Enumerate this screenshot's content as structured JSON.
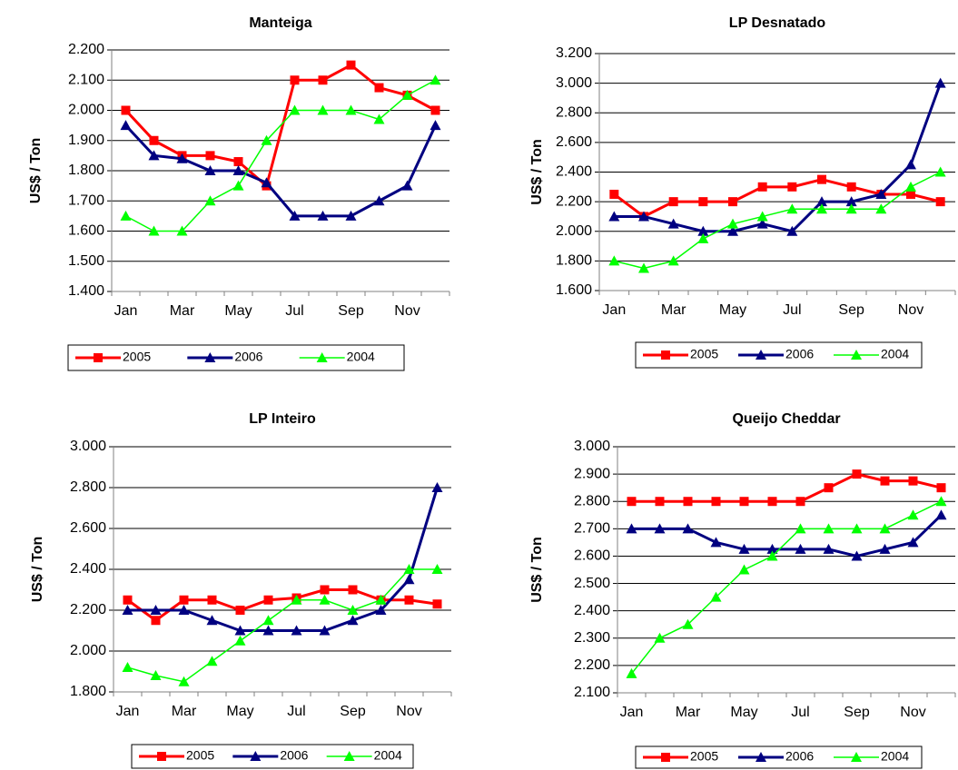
{
  "chart_data": [
    {
      "type": "line",
      "title": "Manteiga",
      "y_label": "US$ / Ton",
      "categories": [
        "Jan",
        null,
        "Mar",
        null,
        "May",
        null,
        "Jul",
        null,
        "Sep",
        null,
        "Nov",
        null
      ],
      "ylim": [
        1400,
        2200
      ],
      "yticks": [
        {
          "value": 1400,
          "label": "1.400"
        },
        {
          "value": 1500,
          "label": "1.500"
        },
        {
          "value": 1600,
          "label": "1.600"
        },
        {
          "value": 1700,
          "label": "1.700"
        },
        {
          "value": 1800,
          "label": "1.800"
        },
        {
          "value": 1900,
          "label": "1.900"
        },
        {
          "value": 2000,
          "label": "2.000"
        },
        {
          "value": 2100,
          "label": "2.100"
        },
        {
          "value": 2200,
          "label": "2.200"
        }
      ],
      "grid": true,
      "legend": "bottom",
      "series": [
        {
          "name": "2005",
          "color": "#ff0000",
          "values": [
            2000,
            1900,
            1850,
            1850,
            1830,
            1750,
            2100,
            2100,
            2150,
            2075,
            2050,
            2000
          ]
        },
        {
          "name": "2006",
          "color": "#000080",
          "values": [
            1950,
            1850,
            1840,
            1800,
            1800,
            1760,
            1650,
            1650,
            1650,
            1700,
            1750,
            1950
          ]
        },
        {
          "name": "2004",
          "color": "#00ff00",
          "values": [
            1650,
            1600,
            1600,
            1700,
            1750,
            1900,
            2000,
            2000,
            2000,
            1970,
            2050,
            2100
          ]
        }
      ]
    },
    {
      "type": "line",
      "title": "LP Desnatado",
      "y_label": "US$ / Ton",
      "categories": [
        "Jan",
        null,
        "Mar",
        null,
        "May",
        null,
        "Jul",
        null,
        "Sep",
        null,
        "Nov",
        null
      ],
      "ylim": [
        1600,
        3200
      ],
      "yticks": [
        {
          "value": 1600,
          "label": "1.600"
        },
        {
          "value": 1800,
          "label": "1.800"
        },
        {
          "value": 2000,
          "label": "2.000"
        },
        {
          "value": 2200,
          "label": "2.200"
        },
        {
          "value": 2400,
          "label": "2.400"
        },
        {
          "value": 2600,
          "label": "2.600"
        },
        {
          "value": 2800,
          "label": "2.800"
        },
        {
          "value": 3000,
          "label": "3.000"
        },
        {
          "value": 3200,
          "label": "3.200"
        }
      ],
      "grid": true,
      "legend": "bottom",
      "series": [
        {
          "name": "2005",
          "color": "#ff0000",
          "values": [
            2250,
            2100,
            2200,
            2200,
            2200,
            2300,
            2300,
            2350,
            2300,
            2250,
            2250,
            2200
          ]
        },
        {
          "name": "2006",
          "color": "#000080",
          "values": [
            2100,
            2100,
            2050,
            2000,
            2000,
            2050,
            2000,
            2200,
            2200,
            2250,
            2450,
            3000
          ]
        },
        {
          "name": "2004",
          "color": "#00ff00",
          "values": [
            1800,
            1750,
            1800,
            1950,
            2050,
            2100,
            2150,
            2150,
            2150,
            2150,
            2300,
            2400
          ]
        }
      ]
    },
    {
      "type": "line",
      "title": "LP Inteiro",
      "y_label": "US$ / Ton",
      "categories": [
        "Jan",
        null,
        "Mar",
        null,
        "May",
        null,
        "Jul",
        null,
        "Sep",
        null,
        "Nov",
        null
      ],
      "ylim": [
        1800,
        3000
      ],
      "yticks": [
        {
          "value": 1800,
          "label": "1.800"
        },
        {
          "value": 2000,
          "label": "2.000"
        },
        {
          "value": 2200,
          "label": "2.200"
        },
        {
          "value": 2400,
          "label": "2.400"
        },
        {
          "value": 2600,
          "label": "2.600"
        },
        {
          "value": 2800,
          "label": "2.800"
        },
        {
          "value": 3000,
          "label": "3.000"
        }
      ],
      "grid": true,
      "legend": "bottom",
      "series": [
        {
          "name": "2005",
          "color": "#ff0000",
          "values": [
            2250,
            2150,
            2250,
            2250,
            2200,
            2250,
            2260,
            2300,
            2300,
            2250,
            2250,
            2230
          ]
        },
        {
          "name": "2006",
          "color": "#000080",
          "values": [
            2200,
            2200,
            2200,
            2150,
            2100,
            2100,
            2100,
            2100,
            2150,
            2200,
            2350,
            2800
          ]
        },
        {
          "name": "2004",
          "color": "#00ff00",
          "values": [
            1920,
            1880,
            1850,
            1950,
            2050,
            2150,
            2250,
            2250,
            2200,
            2250,
            2400,
            2400
          ]
        }
      ]
    },
    {
      "type": "line",
      "title": "Queijo Cheddar",
      "y_label": "US$ / Ton",
      "categories": [
        "Jan",
        null,
        "Mar",
        null,
        "May",
        null,
        "Jul",
        null,
        "Sep",
        null,
        "Nov",
        null
      ],
      "ylim": [
        2100,
        3000
      ],
      "yticks": [
        {
          "value": 2100,
          "label": "2.100"
        },
        {
          "value": 2200,
          "label": "2.200"
        },
        {
          "value": 2300,
          "label": "2.300"
        },
        {
          "value": 2400,
          "label": "2.400"
        },
        {
          "value": 2500,
          "label": "2.500"
        },
        {
          "value": 2600,
          "label": "2.600"
        },
        {
          "value": 2700,
          "label": "2.700"
        },
        {
          "value": 2800,
          "label": "2.800"
        },
        {
          "value": 2900,
          "label": "2.900"
        },
        {
          "value": 3000,
          "label": "3.000"
        }
      ],
      "grid": true,
      "legend": "bottom",
      "series": [
        {
          "name": "2005",
          "color": "#ff0000",
          "values": [
            2800,
            2800,
            2800,
            2800,
            2800,
            2800,
            2800,
            2850,
            2900,
            2875,
            2875,
            2850
          ]
        },
        {
          "name": "2006",
          "color": "#000080",
          "values": [
            2700,
            2700,
            2700,
            2650,
            2625,
            2625,
            2625,
            2625,
            2600,
            2625,
            2650,
            2750
          ]
        },
        {
          "name": "2004",
          "color": "#00ff00",
          "values": [
            2170,
            2300,
            2350,
            2450,
            2550,
            2600,
            2700,
            2700,
            2700,
            2700,
            2750,
            2800
          ]
        }
      ]
    }
  ]
}
